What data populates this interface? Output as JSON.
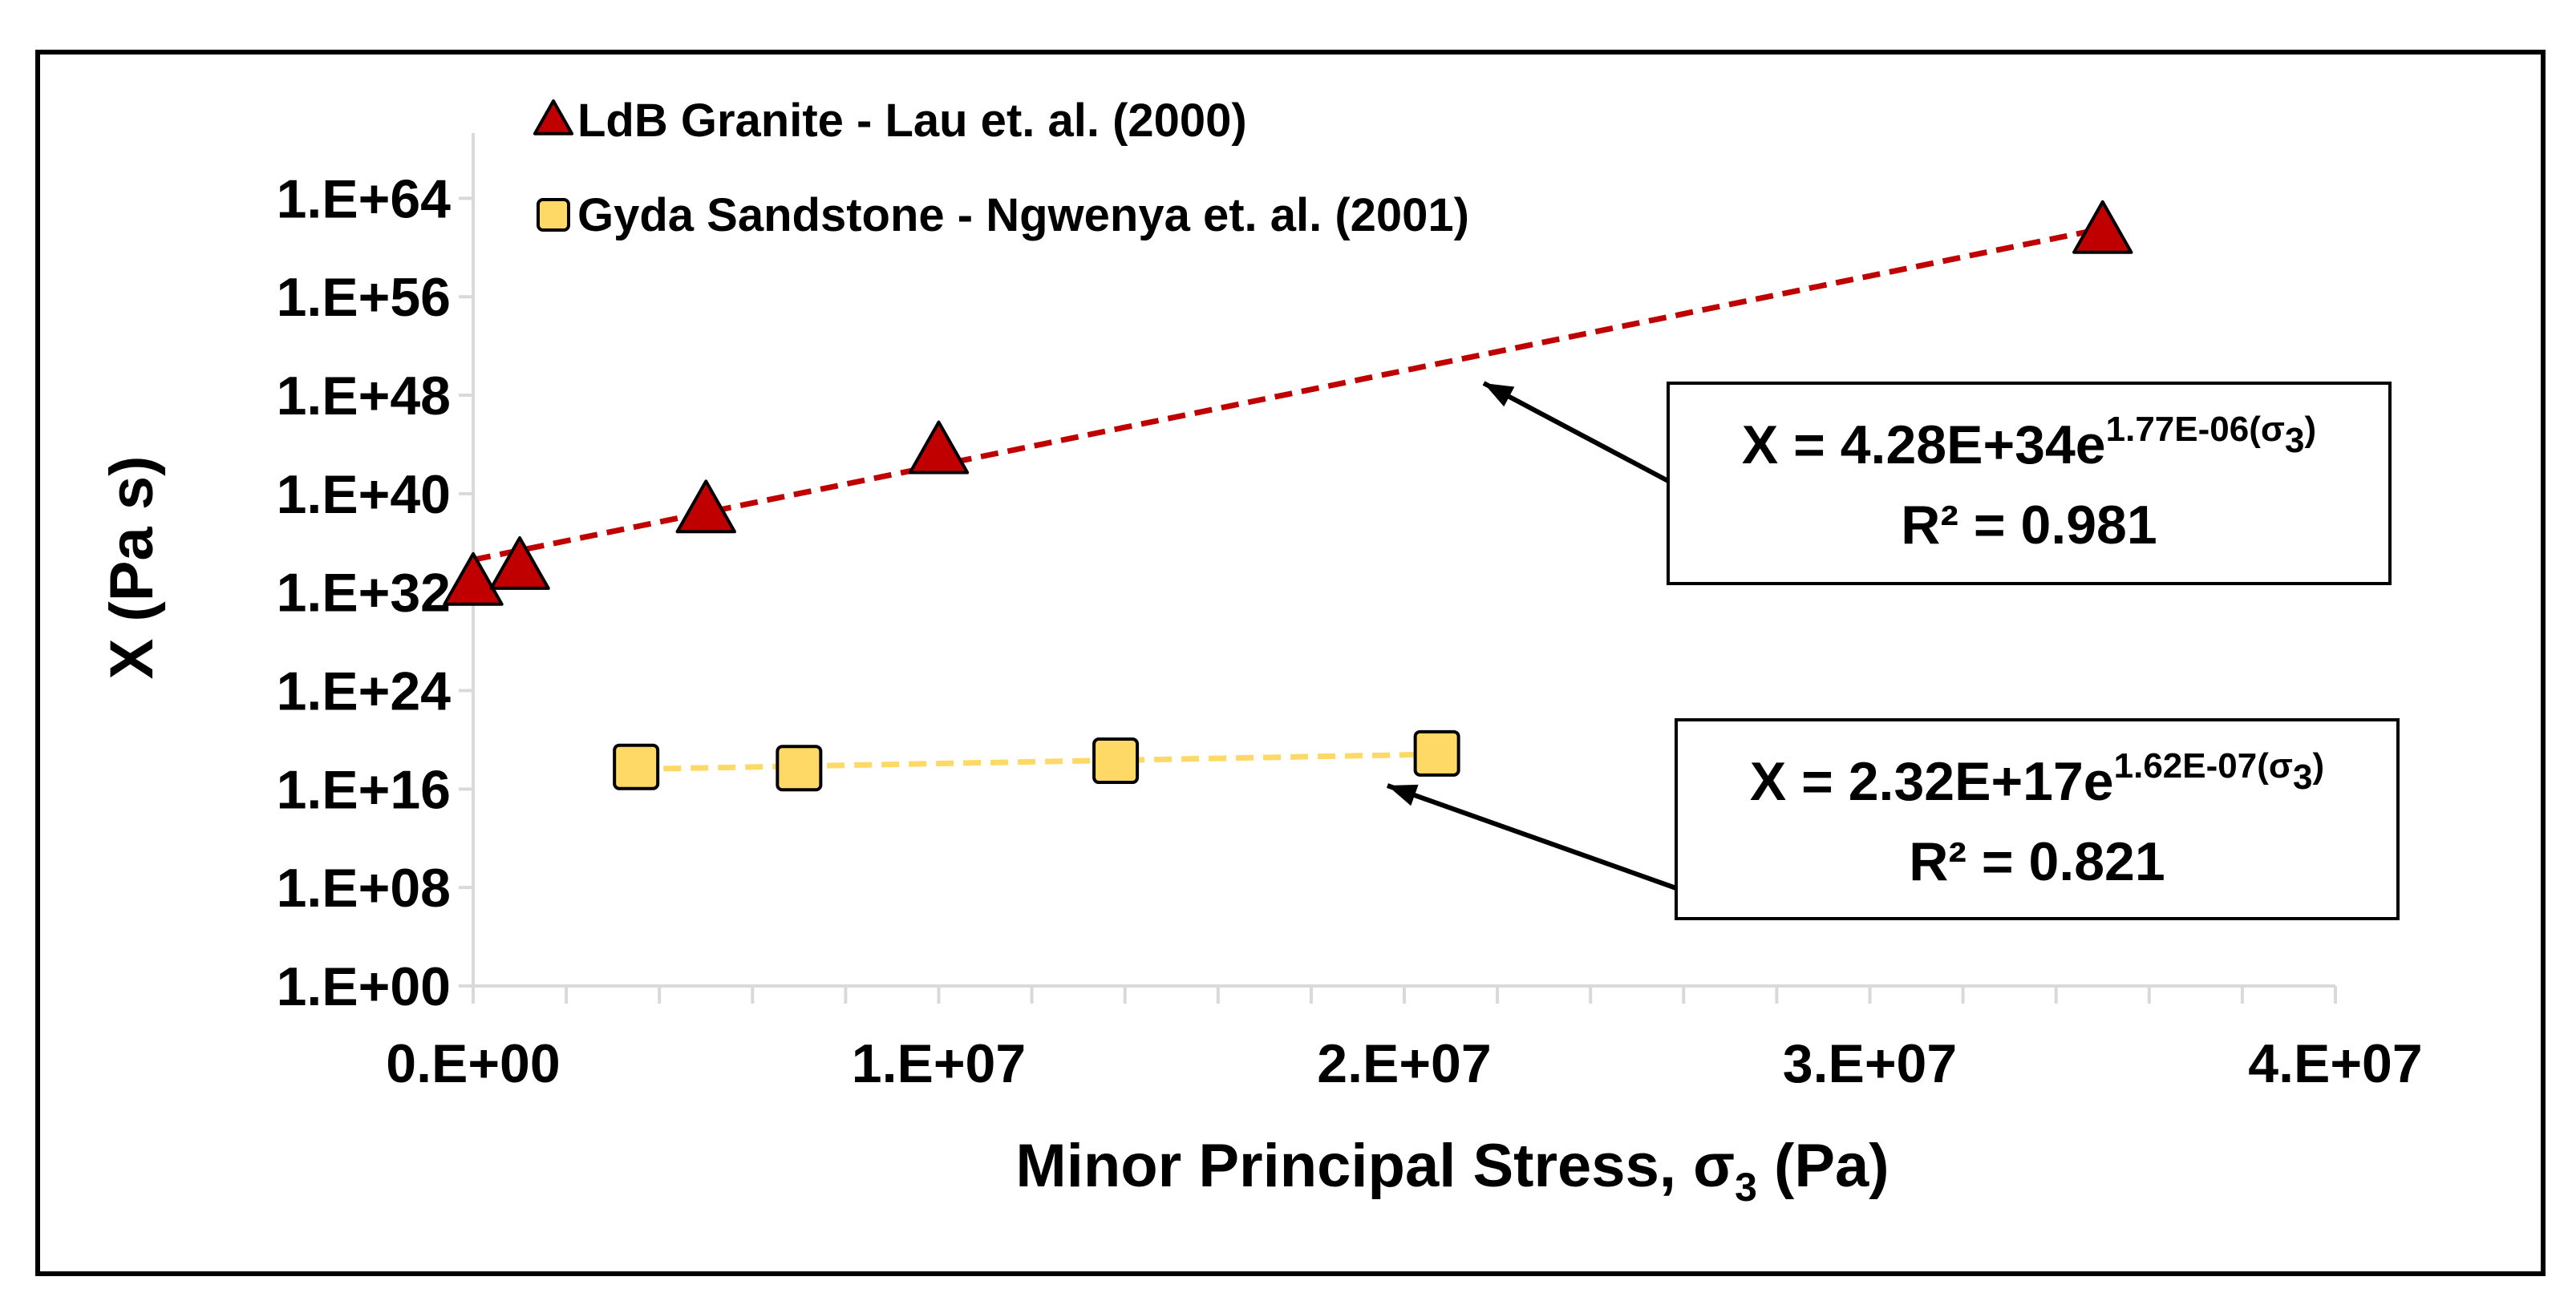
{
  "chart_data": {
    "type": "scatter",
    "title": "",
    "xlabel": "Minor Principal Stress, σ",
    "xlabel_sub": "3",
    "xlabel_tail": " (Pa)",
    "ylabel": "X (Pa s)",
    "x_scale": "linear",
    "y_scale": "log",
    "xlim": [
      0,
      40000000
    ],
    "ylim_exponent": [
      0,
      68
    ],
    "x_ticks": [
      0,
      10000000,
      20000000,
      30000000,
      40000000
    ],
    "x_tick_labels": [
      "0.E+00",
      "1.E+07",
      "2.E+07",
      "3.E+07",
      "4.E+07"
    ],
    "y_tick_exponents": [
      0,
      8,
      16,
      24,
      32,
      40,
      48,
      56,
      64
    ],
    "y_tick_labels": [
      "1.E+00",
      "1.E+08",
      "1.E+16",
      "1.E+24",
      "1.E+32",
      "1.E+40",
      "1.E+48",
      "1.E+56",
      "1.E+64"
    ],
    "x_minor_step": 2000000,
    "grid": false,
    "legend_position": "top-left",
    "series": [
      {
        "name": "LdB Granite - Lau et. al. (2000)",
        "marker": "triangle",
        "color": "#c00000",
        "points": [
          {
            "x": 0,
            "y_exp": 32.9
          },
          {
            "x": 1000000,
            "y_exp": 34.2
          },
          {
            "x": 5000000,
            "y_exp": 38.8
          },
          {
            "x": 10000000,
            "y_exp": 43.6
          },
          {
            "x": 35000000,
            "y_exp": 61.5
          }
        ],
        "trend": {
          "color": "#c00000",
          "coefficient_exp": 34.63,
          "rate": 1.77e-06,
          "x_range": [
            0,
            35000000
          ],
          "equation_main": "X = 4.28E+34e",
          "equation_sup": "1.77E-06(σ",
          "equation_sup_sub": "3",
          "equation_sup_tail": ")",
          "r_squared": "R² = 0.981"
        }
      },
      {
        "name": "Gyda Sandstone - Ngwenya et. al. (2001)",
        "marker": "square",
        "color": "#ffd966",
        "points": [
          {
            "x": 3500000,
            "y_exp": 17.8
          },
          {
            "x": 7000000,
            "y_exp": 17.7
          },
          {
            "x": 13800000,
            "y_exp": 18.3
          },
          {
            "x": 20700000,
            "y_exp": 18.9
          }
        ],
        "trend": {
          "color": "#ffd966",
          "coefficient_exp": 17.37,
          "rate": 1.62e-07,
          "x_range": [
            3500000,
            20700000
          ],
          "equation_main": "X = 2.32E+17e",
          "equation_sup": "1.62E-07(σ",
          "equation_sup_sub": "3",
          "equation_sup_tail": ")",
          "r_squared": "R² = 0.821"
        }
      }
    ]
  }
}
